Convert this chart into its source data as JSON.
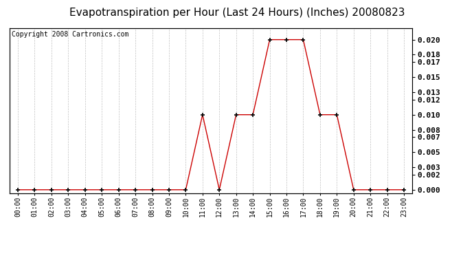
{
  "title": "Evapotranspiration per Hour (Last 24 Hours) (Inches) 20080823",
  "copyright": "Copyright 2008 Cartronics.com",
  "hours": [
    "00:00",
    "01:00",
    "02:00",
    "03:00",
    "04:00",
    "05:00",
    "06:00",
    "07:00",
    "08:00",
    "09:00",
    "10:00",
    "11:00",
    "12:00",
    "13:00",
    "14:00",
    "15:00",
    "16:00",
    "17:00",
    "18:00",
    "19:00",
    "20:00",
    "21:00",
    "22:00",
    "23:00"
  ],
  "values": [
    0.0,
    0.0,
    0.0,
    0.0,
    0.0,
    0.0,
    0.0,
    0.0,
    0.0,
    0.0,
    0.0,
    0.01,
    0.0,
    0.01,
    0.01,
    0.02,
    0.02,
    0.02,
    0.01,
    0.01,
    0.0,
    0.0,
    0.0,
    0.0
  ],
  "line_color": "#cc0000",
  "marker_color": "#000000",
  "bg_color": "#ffffff",
  "plot_bg_color": "#ffffff",
  "grid_color": "#c0c0c0",
  "yticks": [
    0.0,
    0.002,
    0.003,
    0.005,
    0.007,
    0.008,
    0.01,
    0.012,
    0.013,
    0.015,
    0.017,
    0.018,
    0.02
  ],
  "ylim": [
    -0.0005,
    0.0215
  ],
  "title_fontsize": 11,
  "copyright_fontsize": 7,
  "tick_fontsize": 7,
  "ytick_fontsize": 8,
  "title_color": "#000000"
}
